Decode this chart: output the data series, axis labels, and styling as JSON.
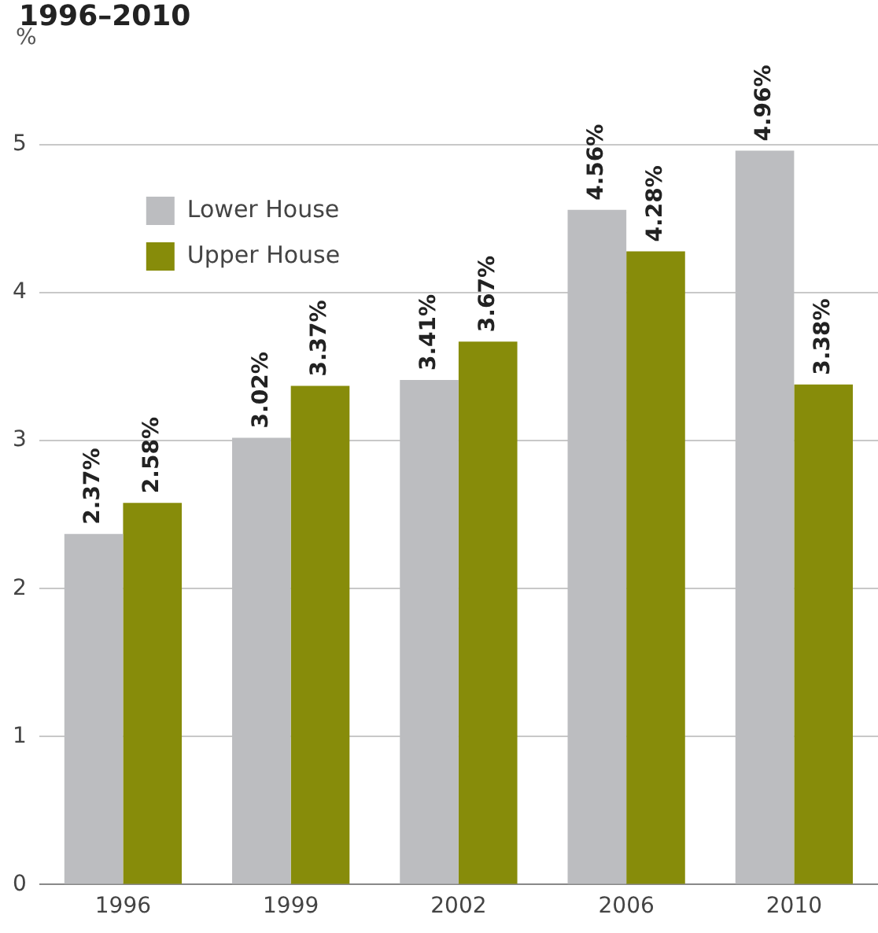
{
  "chart_data": {
    "type": "bar",
    "title": "1996–2010",
    "ylabel": "%",
    "categories": [
      "1996",
      "1999",
      "2002",
      "2006",
      "2010"
    ],
    "series": [
      {
        "name": "Lower House",
        "color": "#bcbdc0",
        "values": [
          2.37,
          3.02,
          3.41,
          4.56,
          4.96
        ],
        "value_labels": [
          "2.37%",
          "3.02%",
          "3.41%",
          "4.56%",
          "4.96%"
        ]
      },
      {
        "name": "Upper House",
        "color": "#878c0a",
        "values": [
          2.58,
          3.37,
          3.67,
          4.28,
          3.38
        ],
        "value_labels": [
          "2.58%",
          "3.37%",
          "3.67%",
          "4.28%",
          "3.38%"
        ]
      }
    ],
    "ylim": [
      0,
      5
    ],
    "yticks": [
      0,
      1,
      2,
      3,
      4,
      5
    ],
    "grid": "y",
    "legend": "top left"
  }
}
